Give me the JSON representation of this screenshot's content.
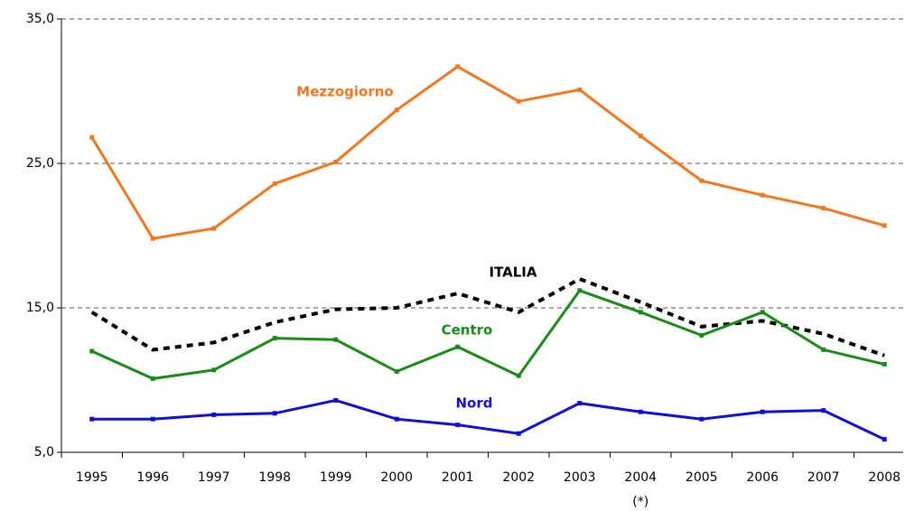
{
  "chart_data": {
    "type": "line",
    "categories": [
      "1995",
      "1996",
      "1997",
      "1998",
      "1999",
      "2000",
      "2001",
      "2002",
      "2003",
      "2004",
      "2005",
      "2006",
      "2007",
      "2008"
    ],
    "category_notes": [
      null,
      null,
      null,
      null,
      null,
      null,
      null,
      null,
      null,
      "(*)",
      null,
      null,
      null,
      null
    ],
    "series": [
      {
        "name": "Mezzogiorno",
        "color": "#f07820",
        "dashed": false,
        "values": [
          26.8,
          19.8,
          20.5,
          23.6,
          25.1,
          28.7,
          31.7,
          29.3,
          30.1,
          26.9,
          23.8,
          22.8,
          21.9,
          20.7
        ]
      },
      {
        "name": "ITALIA",
        "color": "#000000",
        "dashed": true,
        "values": [
          14.7,
          12.1,
          12.6,
          14.0,
          14.9,
          15.0,
          16.0,
          14.7,
          17.0,
          15.4,
          13.7,
          14.1,
          13.2,
          11.7
        ]
      },
      {
        "name": "Centro",
        "color": "#1a8a1a",
        "dashed": false,
        "values": [
          12.0,
          10.1,
          10.7,
          12.9,
          12.8,
          10.6,
          12.3,
          10.3,
          16.2,
          14.7,
          13.1,
          14.7,
          12.1,
          11.1
        ]
      },
      {
        "name": "Nord",
        "color": "#1010d0",
        "dashed": false,
        "values": [
          7.3,
          7.3,
          7.6,
          7.7,
          8.6,
          7.3,
          6.9,
          6.3,
          8.4,
          7.8,
          7.3,
          7.8,
          7.9,
          5.9
        ]
      }
    ],
    "ylim": [
      5,
      35
    ],
    "yticks": [
      {
        "value": 5,
        "label": "5,0"
      },
      {
        "value": 15,
        "label": "15,0"
      },
      {
        "value": 25,
        "label": "25,0"
      },
      {
        "value": 35,
        "label": "35,0"
      }
    ],
    "grid": true
  }
}
